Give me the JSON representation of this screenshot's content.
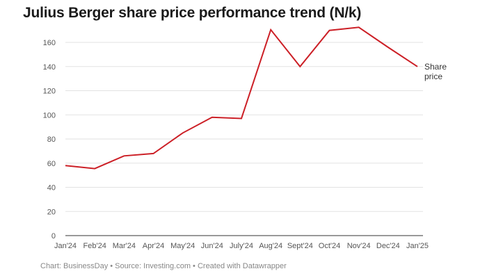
{
  "chart_data": {
    "type": "line",
    "title": "Julius Berger share price performance trend (N/k)",
    "categories": [
      "Jan'24",
      "Feb'24",
      "Mar'24",
      "Apr'24",
      "May'24",
      "Jun'24",
      "July'24",
      "Aug'24",
      "Sept'24",
      "Oct'24",
      "Nov'24",
      "Dec'24",
      "Jan'25"
    ],
    "series": [
      {
        "name": "Share price",
        "label_lines": [
          "Share",
          "price"
        ],
        "color": "#cc1f26",
        "values": [
          58,
          55.5,
          66,
          68,
          85,
          98,
          97,
          170.5,
          140,
          170,
          172.5,
          156,
          140
        ]
      }
    ],
    "yticks": [
      0,
      20,
      40,
      60,
      80,
      100,
      120,
      140,
      160
    ],
    "ylim": [
      0,
      175
    ],
    "xlabel": "",
    "ylabel": "",
    "grid": true
  },
  "footer": "Chart: BusinessDay • Source: Investing.com • Created with Datawrapper"
}
